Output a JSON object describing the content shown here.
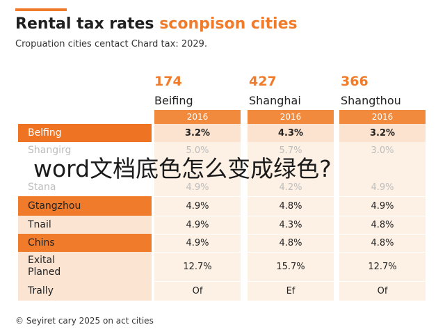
{
  "header": {
    "title_part1": "Rental tax rates",
    "title_part2": "sconpison cities",
    "subtitle": "Cropuation cities centact Chard tax: 2029.",
    "accent_color": "#f07b2a"
  },
  "columns": [
    {
      "number": "174",
      "city": "Beifing",
      "year": "2016"
    },
    {
      "number": "427",
      "city": "Shanghai",
      "year": "2016"
    },
    {
      "number": "366",
      "city": "Shangthou",
      "year": "2016"
    }
  ],
  "rows": [
    {
      "label": "Belfing",
      "values": [
        "3.2%",
        "4.3%",
        "3.2%"
      ]
    },
    {
      "label": "Shangirg",
      "values": [
        "5.0%",
        "5.7%",
        "3.0%"
      ]
    },
    {
      "label": "",
      "values": [
        "",
        "",
        ""
      ]
    },
    {
      "label": "Stana",
      "values": [
        "4.9%",
        "4.2%",
        "4.9%"
      ]
    },
    {
      "label": "Gtangzhou",
      "values": [
        "4.9%",
        "4.8%",
        "4.9%"
      ]
    },
    {
      "label": "Tnail",
      "values": [
        "4.9%",
        "4.3%",
        "4.8%"
      ]
    },
    {
      "label": "Chins",
      "values": [
        "4.9%",
        "4.8%",
        "4.8%"
      ]
    },
    {
      "label": "Exital Planed",
      "values": [
        "12.7%",
        "15.7%",
        "12.7%"
      ]
    },
    {
      "label": "Trally",
      "values": [
        "Of",
        "Ef",
        "Of"
      ]
    }
  ],
  "footer": "© Seyiret cary 2025 on act cities",
  "overlay_text": "word文档底色怎么变成绿色?"
}
